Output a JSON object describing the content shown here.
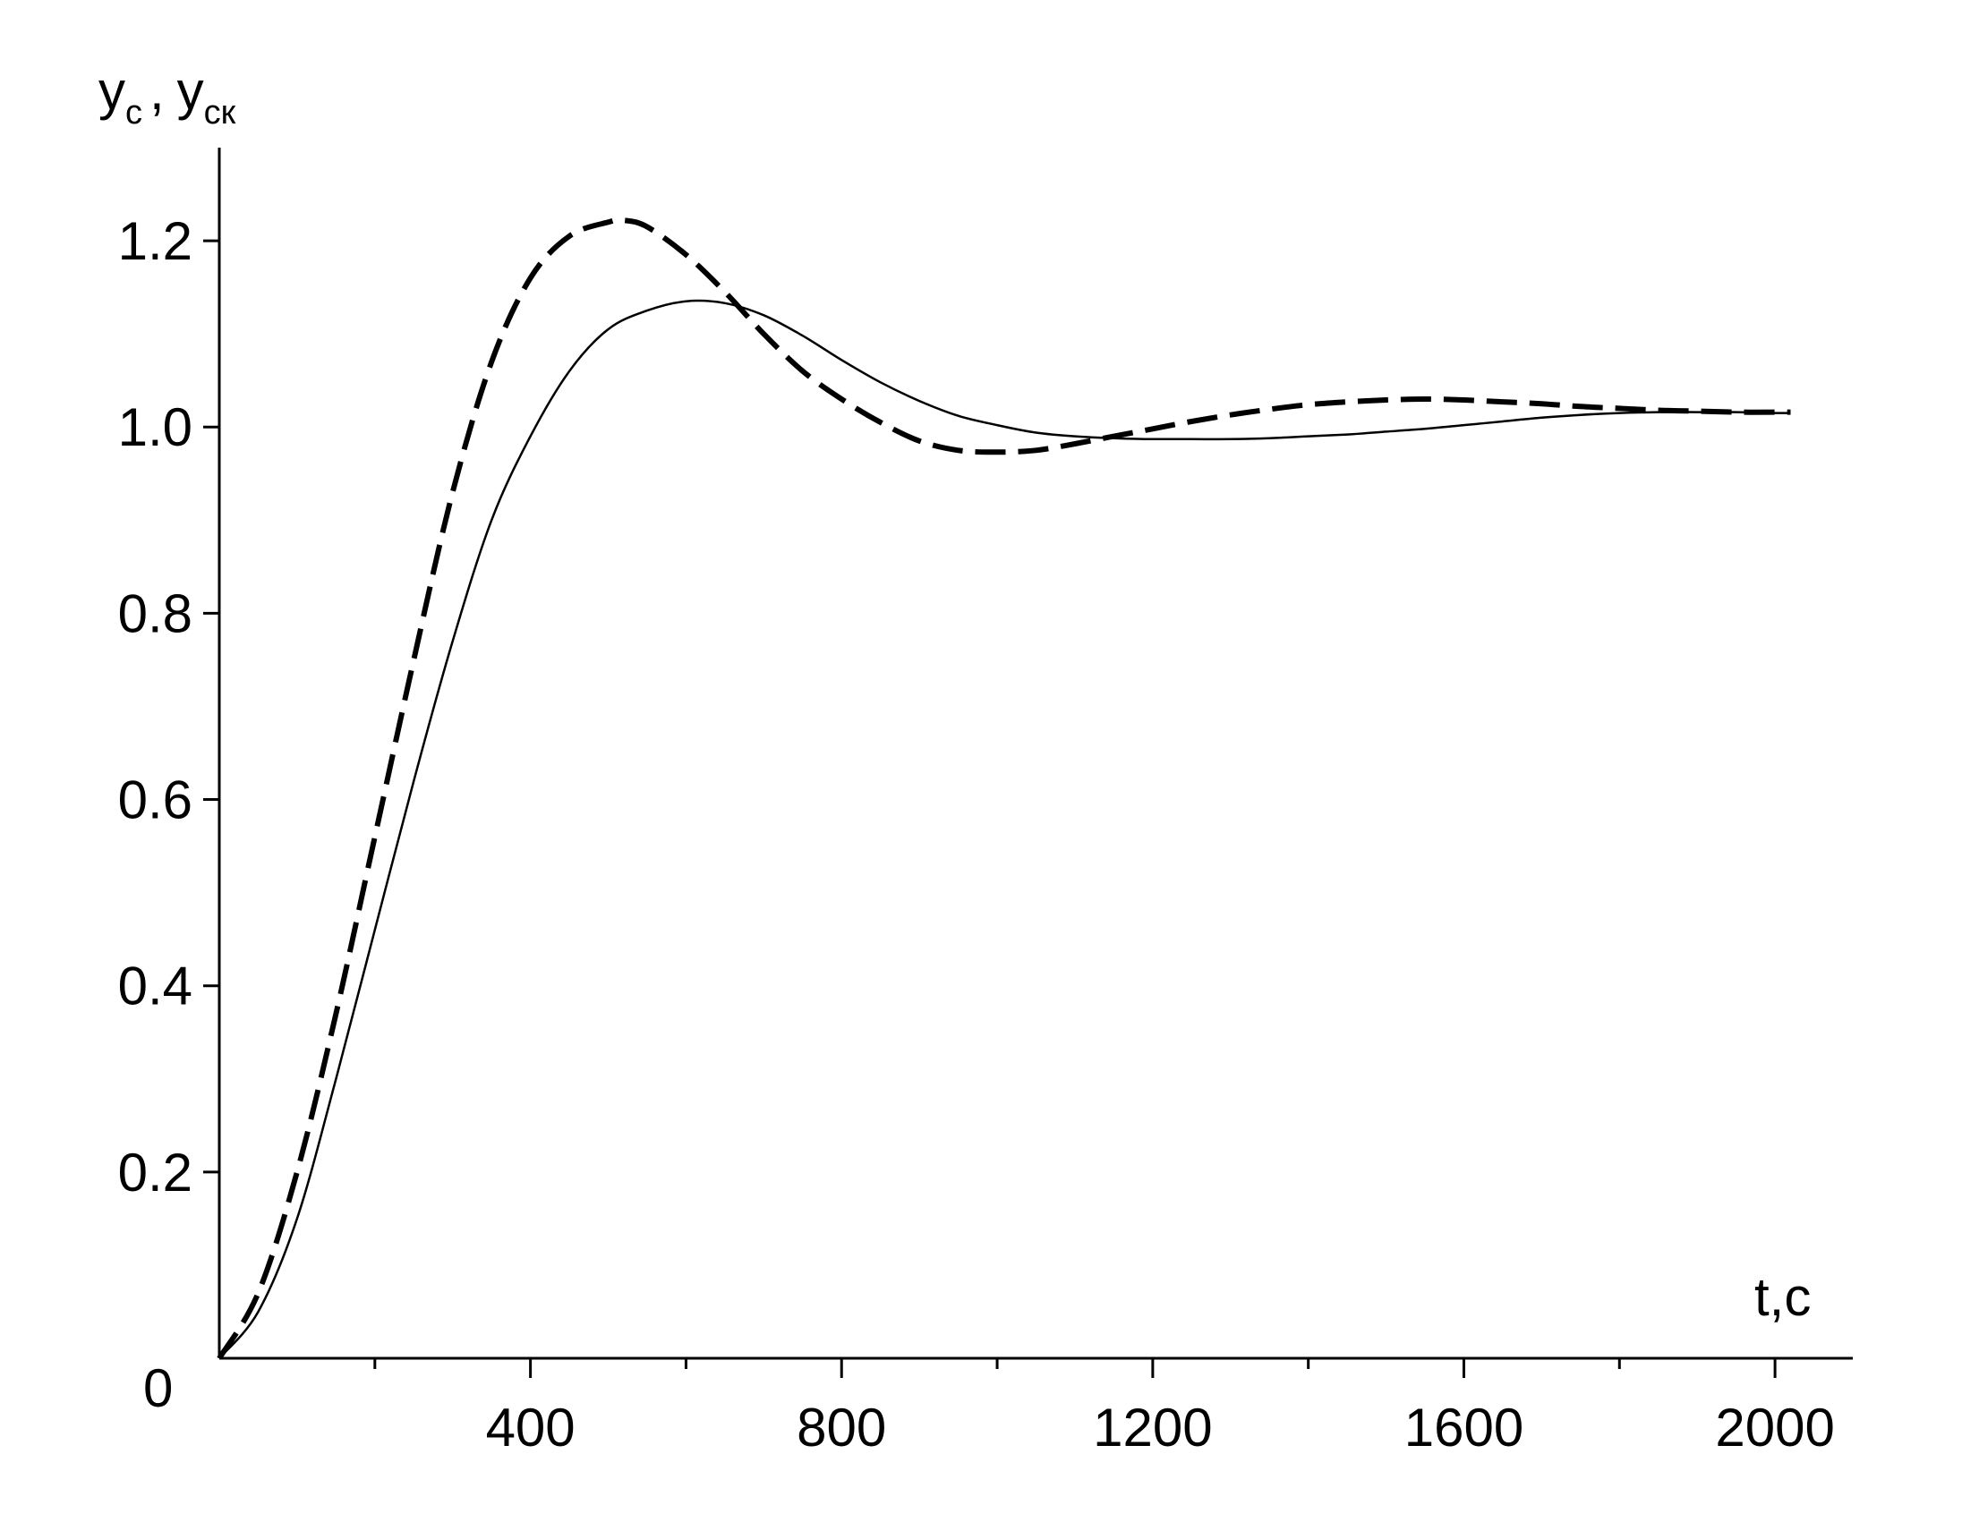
{
  "chart_data": {
    "type": "line",
    "title": "",
    "xlabel": "t,c",
    "ylabel": {
      "first_main": "y",
      "first_sub": "c",
      "separator": ",",
      "second_main": "y",
      "second_sub": "ск"
    },
    "origin_label": "0",
    "xlim": [
      0,
      2100
    ],
    "ylim": [
      0,
      1.3
    ],
    "x_major_ticks": [
      400,
      800,
      1200,
      1600,
      2000
    ],
    "x_minor_ticks": [
      200,
      600,
      1000,
      1400,
      1800
    ],
    "x_tick_labels": [
      "400",
      "800",
      "1200",
      "1600",
      "2000"
    ],
    "y_ticks": [
      0.2,
      0.4,
      0.6,
      0.8,
      1.0,
      1.2
    ],
    "y_tick_labels": [
      "0.2",
      "0.4",
      "0.6",
      "0.8",
      "1.0",
      "1.2"
    ],
    "grid": false,
    "line_color": "#000000",
    "series": [
      {
        "style": "solid",
        "x": [
          0,
          50,
          100,
          150,
          200,
          250,
          300,
          350,
          400,
          450,
          500,
          550,
          600,
          650,
          700,
          750,
          800,
          850,
          900,
          950,
          1000,
          1050,
          1100,
          1150,
          1200,
          1250,
          1300,
          1350,
          1400,
          1450,
          1500,
          1550,
          1600,
          1650,
          1700,
          1750,
          1800,
          1850,
          1900,
          1950,
          2000,
          2020
        ],
        "y": [
          0,
          0.05,
          0.15,
          0.3,
          0.46,
          0.62,
          0.77,
          0.9,
          0.99,
          1.06,
          1.105,
          1.125,
          1.135,
          1.133,
          1.12,
          1.098,
          1.072,
          1.048,
          1.028,
          1.012,
          1.002,
          0.994,
          0.99,
          0.988,
          0.987,
          0.987,
          0.987,
          0.988,
          0.99,
          0.992,
          0.995,
          0.998,
          1.002,
          1.006,
          1.01,
          1.013,
          1.015,
          1.016,
          1.016,
          1.016,
          1.015,
          1.015
        ]
      },
      {
        "style": "dashed",
        "x": [
          0,
          50,
          100,
          150,
          200,
          250,
          300,
          350,
          400,
          450,
          500,
          520,
          550,
          600,
          650,
          700,
          750,
          800,
          850,
          900,
          950,
          1000,
          1050,
          1100,
          1150,
          1200,
          1250,
          1300,
          1350,
          1400,
          1450,
          1500,
          1550,
          1600,
          1650,
          1700,
          1750,
          1800,
          1850,
          1900,
          1950,
          2000,
          2020
        ],
        "y": [
          0,
          0.07,
          0.2,
          0.37,
          0.56,
          0.75,
          0.93,
          1.07,
          1.16,
          1.205,
          1.22,
          1.222,
          1.215,
          1.185,
          1.145,
          1.1,
          1.06,
          1.03,
          1.005,
          0.985,
          0.975,
          0.973,
          0.975,
          0.982,
          0.99,
          0.998,
          1.006,
          1.013,
          1.019,
          1.024,
          1.027,
          1.029,
          1.03,
          1.029,
          1.027,
          1.025,
          1.022,
          1.02,
          1.018,
          1.017,
          1.016,
          1.016,
          1.016
        ]
      }
    ]
  }
}
